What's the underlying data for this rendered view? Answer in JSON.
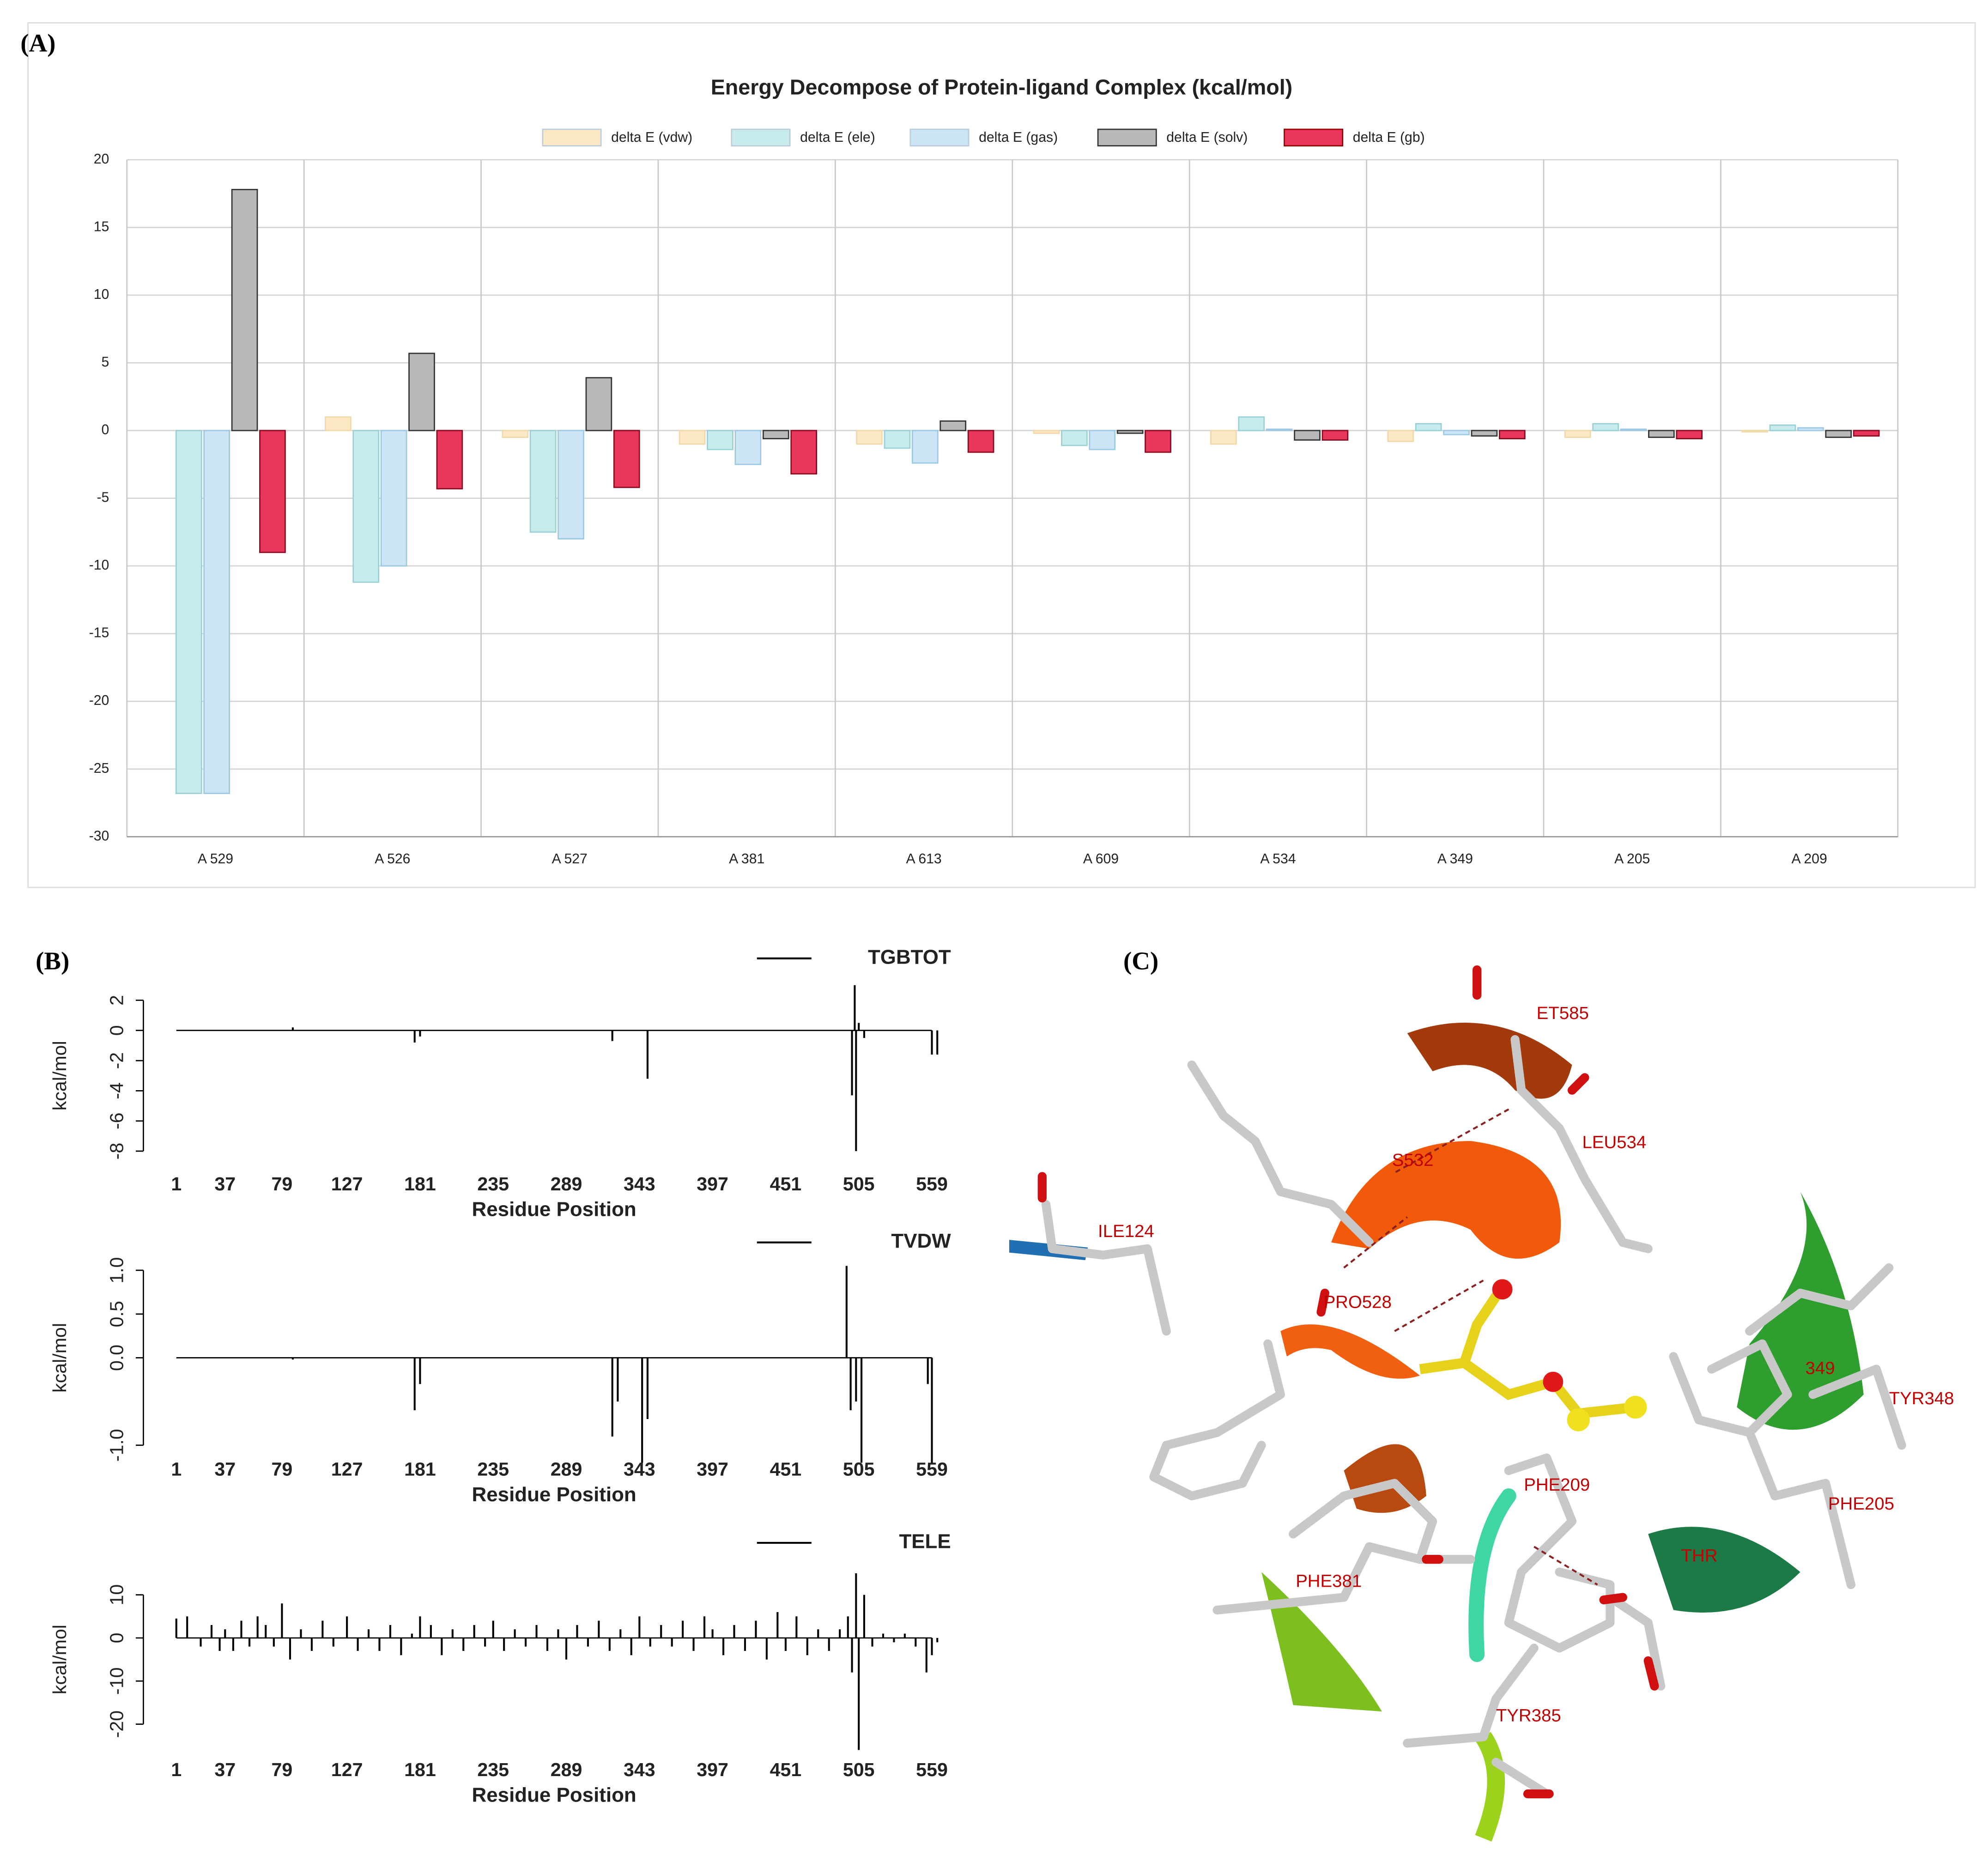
{
  "panels": [
    "(A)",
    "(B)",
    "(C)"
  ],
  "chart_data": [
    {
      "type": "bar",
      "title": "Energy Decompose of Protein-ligand Complex (kcal/mol)",
      "categories": [
        "A 529",
        "A 526",
        "A 527",
        "A 381",
        "A 613",
        "A 609",
        "A 534",
        "A 349",
        "A 205",
        "A 209"
      ],
      "series": [
        {
          "name": "delta E (vdw)",
          "color": "#fde8c6",
          "values": [
            0,
            1.0,
            -0.5,
            -1.0,
            -1.0,
            -0.2,
            -1.0,
            -0.8,
            -0.5,
            -0.1
          ]
        },
        {
          "name": "delta E (ele)",
          "color": "#c8ebee",
          "values": [
            -26.8,
            -11.2,
            -7.5,
            -1.4,
            -1.3,
            -1.1,
            1.0,
            0.5,
            0.5,
            0.4
          ]
        },
        {
          "name": "delta E (gas)",
          "color": "#cce5f4",
          "values": [
            -26.8,
            -10.0,
            -8.0,
            -2.5,
            -2.4,
            -1.4,
            0.1,
            -0.3,
            0.1,
            0.2
          ]
        },
        {
          "name": "delta E (solv)",
          "color": "#b9b9b9",
          "values": [
            17.8,
            5.7,
            3.9,
            -0.6,
            0.7,
            -0.2,
            -0.7,
            -0.4,
            -0.5,
            -0.5
          ]
        },
        {
          "name": "delta E (gb)",
          "color": "#e8375a",
          "values": [
            -9.0,
            -4.3,
            -4.2,
            -3.2,
            -1.6,
            -1.6,
            -0.7,
            -0.6,
            -0.6,
            -0.4
          ]
        }
      ],
      "ylim": [
        -30,
        20
      ],
      "yticks": [
        -30,
        -25,
        -20,
        -15,
        -10,
        -5,
        0,
        5,
        10,
        15,
        20
      ],
      "grid": true
    },
    {
      "type": "spike",
      "name": "TGBTOT",
      "xlabel": "Residue Position",
      "ylabel": "kcal/mol",
      "color": "#000000",
      "x": [
        87,
        177,
        181,
        323,
        349,
        500,
        502,
        503,
        505,
        509,
        559,
        563
      ],
      "values": [
        0.2,
        -0.8,
        -0.4,
        -0.7,
        -3.2,
        -4.3,
        3.0,
        -8.0,
        0.5,
        -0.5,
        -1.6,
        -1.6
      ],
      "xlim": [
        1,
        559
      ],
      "xticks": [
        1,
        37,
        79,
        127,
        181,
        235,
        289,
        343,
        397,
        451,
        505,
        559
      ],
      "ylim": [
        -8,
        2
      ],
      "yticks": [
        -8,
        -6,
        -4,
        -2,
        0,
        2
      ]
    },
    {
      "type": "spike",
      "name": "TVDW",
      "xlabel": "Residue Position",
      "ylabel": "kcal/mol",
      "color": "#000000",
      "x": [
        87,
        177,
        181,
        323,
        327,
        345,
        349,
        496,
        499,
        503,
        507,
        556,
        559
      ],
      "values": [
        -0.02,
        -0.6,
        -0.3,
        -0.9,
        -0.5,
        -1.2,
        -0.7,
        1.05,
        -0.6,
        -0.5,
        -1.2,
        -0.3,
        -1.2
      ],
      "xlim": [
        1,
        559
      ],
      "xticks": [
        1,
        37,
        79,
        127,
        181,
        235,
        289,
        343,
        397,
        451,
        505,
        559
      ],
      "ylim": [
        -1,
        1
      ],
      "yticks": [
        {
          "value": -1,
          "label": "-1.0"
        },
        {
          "value": 0,
          "label": "0.0"
        },
        0.5,
        {
          "value": 1,
          "label": "1.0"
        }
      ]
    },
    {
      "type": "spike",
      "name": "TELE",
      "xlabel": "Residue Position",
      "ylabel": "kcal/mol",
      "color": "#000000",
      "x": [
        1,
        9,
        19,
        27,
        33,
        37,
        43,
        49,
        55,
        61,
        67,
        73,
        79,
        85,
        93,
        101,
        109,
        117,
        127,
        135,
        143,
        151,
        159,
        167,
        175,
        181,
        189,
        197,
        205,
        213,
        221,
        229,
        235,
        243,
        251,
        259,
        267,
        275,
        283,
        289,
        297,
        305,
        313,
        321,
        329,
        337,
        343,
        351,
        359,
        367,
        375,
        383,
        391,
        397,
        405,
        413,
        421,
        429,
        437,
        445,
        451,
        459,
        467,
        475,
        483,
        491,
        497,
        500,
        503,
        505,
        509,
        515,
        523,
        531,
        539,
        547,
        555,
        559,
        563
      ],
      "values": [
        4.5,
        5,
        -2,
        3,
        -3,
        2,
        -3,
        4,
        -2,
        5,
        3,
        -2,
        8,
        -5,
        2,
        -3,
        4,
        -2,
        5,
        -3,
        2,
        -3,
        3,
        -4,
        1,
        5,
        3,
        -4,
        2,
        -3,
        3,
        -2,
        4,
        -3,
        2,
        -2,
        3,
        -3,
        2,
        -5,
        3,
        -2,
        4,
        -3,
        2,
        -4,
        5,
        -2,
        3,
        -2,
        4,
        -3,
        5,
        2,
        -4,
        3,
        -3,
        4,
        -5,
        6,
        -3,
        5,
        -4,
        2,
        -3,
        2,
        5,
        -8,
        15,
        -26,
        10,
        -2,
        1,
        -1,
        1,
        -2,
        -8,
        -4,
        -1
      ],
      "xlim": [
        1,
        559
      ],
      "xticks": [
        1,
        37,
        79,
        127,
        181,
        235,
        289,
        343,
        397,
        451,
        505,
        559
      ],
      "ylim": [
        -20,
        10
      ],
      "yticks": [
        -20,
        -10,
        0,
        10
      ]
    }
  ],
  "molecule": {
    "labels": [
      "ET585",
      "LEU534",
      "S532",
      "ILE124",
      "PRO528",
      "TYR348",
      "349",
      "PHE209",
      "PHE205",
      "PHE381",
      "TYR385",
      "THR"
    ]
  }
}
